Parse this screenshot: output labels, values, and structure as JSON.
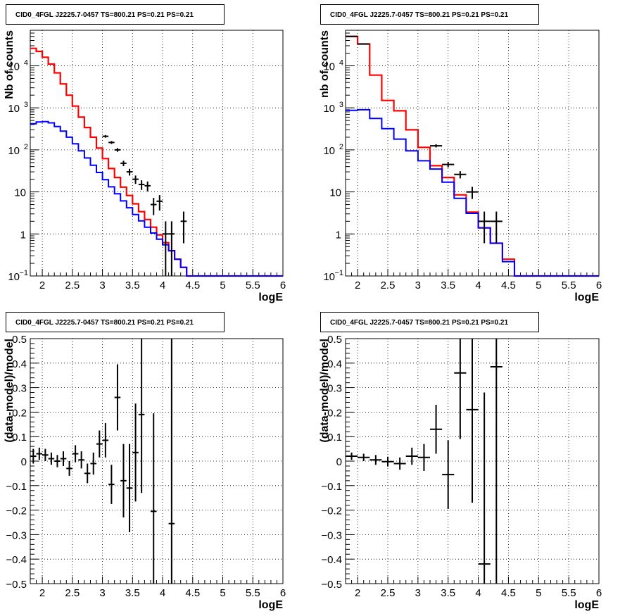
{
  "pads": [
    {
      "title": "CID0_4FGL J2225.7-0457 TS=800.21 PS=0.21 PS=0.21",
      "xlabel": "logE",
      "ylabel": "Nb of counts"
    },
    {
      "title": "CID0_4FGL J2225.7-0457 TS=800.21 PS=0.21 PS=0.21",
      "xlabel": "logE",
      "ylabel": "nb of counts"
    },
    {
      "title": "CID0_4FGL J2225.7-0457 TS=800.21 PS=0.21 PS=0.21",
      "xlabel": "logE",
      "ylabel": "(data-model)/model"
    },
    {
      "title": "CID0_4FGL J2225.7-0457 TS=800.21 PS=0.21 PS=0.21",
      "xlabel": "logE",
      "ylabel": "(data-model)/model"
    }
  ],
  "colors": {
    "total_model": "#ff0000",
    "source_model": "#0000ff",
    "data": "#000000",
    "grid": "#000000"
  },
  "chart_data": [
    {
      "type": "line",
      "title": "CID0_4FGL J2225.7-0457 TS=800.21 PS=0.21 PS=0.21",
      "xlabel": "logE",
      "ylabel": "Nb of counts",
      "xlim": [
        1.8,
        6.0
      ],
      "ylim": [
        0.1,
        70000
      ],
      "yscale": "log",
      "grid": true,
      "x_ticks": [
        "2",
        "2.5",
        "3",
        "3.5",
        "4",
        "4.5",
        "5",
        "5.5",
        "6"
      ],
      "y_ticks": [
        "10^-1",
        "1",
        "10",
        "10^2",
        "10^3",
        "10^4"
      ],
      "step_edges": [
        1.8,
        1.9,
        2.0,
        2.1,
        2.2,
        2.3,
        2.4,
        2.5,
        2.6,
        2.7,
        2.8,
        2.9,
        3.0,
        3.1,
        3.2,
        3.3,
        3.4,
        3.5,
        3.6,
        3.7,
        3.8,
        3.9,
        4.0,
        4.1,
        4.2,
        4.3,
        4.4,
        4.5,
        4.6,
        4.7,
        4.8,
        4.9,
        5.0,
        5.1,
        5.2,
        5.3,
        5.4,
        5.5,
        5.6,
        5.7,
        5.8,
        5.9,
        6.0
      ],
      "series": [
        {
          "role": "total_model",
          "values": [
            26000,
            22000,
            16000,
            11000,
            6800,
            3700,
            2000,
            1100,
            600,
            340,
            200,
            110,
            62,
            36,
            22,
            13,
            8.2,
            5.2,
            3.4,
            2.2,
            1.45,
            0.95,
            0.62,
            0.4,
            0.25,
            0.16,
            0.1,
            0.1,
            0.1,
            0.1,
            0.1,
            0.1,
            0.1,
            0.1,
            0.1,
            0.1,
            0.1,
            0.1,
            0.1,
            0.1,
            0.1,
            0.1
          ]
        },
        {
          "role": "source_model",
          "values": [
            420,
            460,
            470,
            440,
            360,
            280,
            200,
            140,
            95,
            64,
            43,
            29,
            19.5,
            13.2,
            9,
            6.1,
            4.2,
            2.9,
            2.05,
            1.45,
            1.05,
            0.75,
            0.55,
            0.4,
            0.25,
            0.16,
            0.1,
            0.1,
            0.1,
            0.1,
            0.1,
            0.1,
            0.1,
            0.1,
            0.1,
            0.1,
            0.1,
            0.1,
            0.1,
            0.1,
            0.1,
            0.1
          ]
        },
        {
          "role": "data",
          "x": [
            3.05,
            3.15,
            3.25,
            3.35,
            3.45,
            3.55,
            3.65,
            3.75,
            3.85,
            3.95,
            4.05,
            4.15,
            4.35
          ],
          "y": [
            210,
            150,
            100,
            48,
            30,
            20,
            15,
            14,
            5,
            6,
            1,
            1,
            2
          ],
          "yerr": [
            15,
            12,
            10,
            7,
            5.5,
            4.5,
            3.9,
            3.7,
            2.2,
            2.4,
            1,
            1,
            1.4
          ]
        }
      ]
    },
    {
      "type": "line",
      "title": "CID0_4FGL J2225.7-0457 TS=800.21 PS=0.21 PS=0.21",
      "xlabel": "logE",
      "ylabel": "nb of counts",
      "xlim": [
        1.8,
        6.0
      ],
      "ylim": [
        0.1,
        70000
      ],
      "yscale": "log",
      "grid": true,
      "x_ticks": [
        "2",
        "2.5",
        "3",
        "3.5",
        "4",
        "4.5",
        "5",
        "5.5",
        "6"
      ],
      "y_ticks": [
        "10^-1",
        "1",
        "10",
        "10^2",
        "10^3",
        "10^4"
      ],
      "step_edges": [
        1.8,
        2.0,
        2.2,
        2.4,
        2.6,
        2.8,
        3.0,
        3.2,
        3.4,
        3.6,
        3.8,
        4.0,
        4.2,
        4.4,
        4.6,
        4.8,
        5.0,
        5.2,
        5.4,
        5.6,
        5.8,
        6.0
      ],
      "series": [
        {
          "role": "total_model",
          "values": [
            50000,
            33000,
            6000,
            1500,
            850,
            300,
            115,
            42,
            22,
            8.5,
            3.3,
            1.4,
            0.6,
            0.25,
            0.1,
            0.1,
            0.1,
            0.1,
            0.1,
            0.1,
            0.1
          ]
        },
        {
          "role": "source_model",
          "values": [
            870,
            900,
            560,
            320,
            180,
            95,
            55,
            35,
            17,
            7,
            3.1,
            1.4,
            0.6,
            0.22,
            0.1,
            0.1,
            0.1,
            0.1,
            0.1,
            0.1,
            0.1
          ]
        },
        {
          "role": "data",
          "x": [
            1.9,
            2.1,
            3.3,
            3.5,
            3.7,
            3.9,
            4.1,
            4.3
          ],
          "y": [
            50000,
            33000,
            125,
            45,
            26,
            10,
            2,
            2
          ],
          "yerr": [
            224,
            182,
            11,
            6.7,
            5.1,
            3.2,
            1.4,
            1.4
          ]
        }
      ]
    },
    {
      "type": "scatter",
      "title": "CID0_4FGL J2225.7-0457 TS=800.21 PS=0.21 PS=0.21",
      "xlabel": "logE",
      "ylabel": "(data-model)/model",
      "xlim": [
        1.8,
        6.0
      ],
      "ylim": [
        -0.5,
        0.5
      ],
      "grid": true,
      "x_ticks": [
        "2",
        "2.5",
        "3",
        "3.5",
        "4",
        "4.5",
        "5",
        "5.5",
        "6"
      ],
      "y_ticks": [
        "-0.5",
        "-0.4",
        "-0.3",
        "-0.2",
        "-0.1",
        "0",
        "0.1",
        "0.2",
        "0.3",
        "0.4",
        "0.5"
      ],
      "x_halfwidth": 0.05,
      "series": [
        {
          "role": "data",
          "x": [
            1.85,
            1.95,
            2.05,
            2.15,
            2.25,
            2.35,
            2.45,
            2.55,
            2.65,
            2.75,
            2.85,
            2.95,
            3.05,
            3.15,
            3.25,
            3.35,
            3.45,
            3.55,
            3.65,
            3.85,
            4.15
          ],
          "y": [
            0.02,
            0.03,
            0.025,
            0.01,
            0.0,
            0.01,
            -0.03,
            0.03,
            0.005,
            -0.05,
            -0.01,
            0.07,
            0.085,
            -0.095,
            0.26,
            -0.08,
            -0.11,
            0.035,
            0.19,
            -0.205,
            -0.255
          ],
          "yerr": [
            0.03,
            0.025,
            0.025,
            0.025,
            0.025,
            0.03,
            0.03,
            0.035,
            0.035,
            0.04,
            0.045,
            0.055,
            0.07,
            0.08,
            0.135,
            0.15,
            0.18,
            0.2,
            0.32,
            0.4,
            0.8
          ]
        }
      ]
    },
    {
      "type": "scatter",
      "title": "CID0_4FGL J2225.7-0457 TS=800.21 PS=0.21 PS=0.21",
      "xlabel": "logE",
      "ylabel": "(data-model)/model",
      "xlim": [
        1.8,
        6.0
      ],
      "ylim": [
        -0.5,
        0.5
      ],
      "grid": true,
      "x_ticks": [
        "2",
        "2.5",
        "3",
        "3.5",
        "4",
        "4.5",
        "5",
        "5.5",
        "6"
      ],
      "y_ticks": [
        "-0.5",
        "-0.4",
        "-0.3",
        "-0.2",
        "-0.1",
        "0",
        "0.1",
        "0.2",
        "0.3",
        "0.4",
        "0.5"
      ],
      "x_halfwidth": 0.1,
      "series": [
        {
          "role": "data",
          "x": [
            1.9,
            2.1,
            2.3,
            2.5,
            2.7,
            2.9,
            3.1,
            3.3,
            3.5,
            3.7,
            3.9,
            4.1,
            4.3
          ],
          "y": [
            0.02,
            0.015,
            0.005,
            -0.002,
            -0.01,
            0.02,
            0.015,
            0.13,
            -0.055,
            0.36,
            0.21,
            -0.42,
            0.385
          ],
          "yerr": [
            0.015,
            0.015,
            0.02,
            0.02,
            0.025,
            0.035,
            0.055,
            0.1,
            0.14,
            0.27,
            0.38,
            0.7,
            0.9
          ]
        }
      ]
    }
  ]
}
